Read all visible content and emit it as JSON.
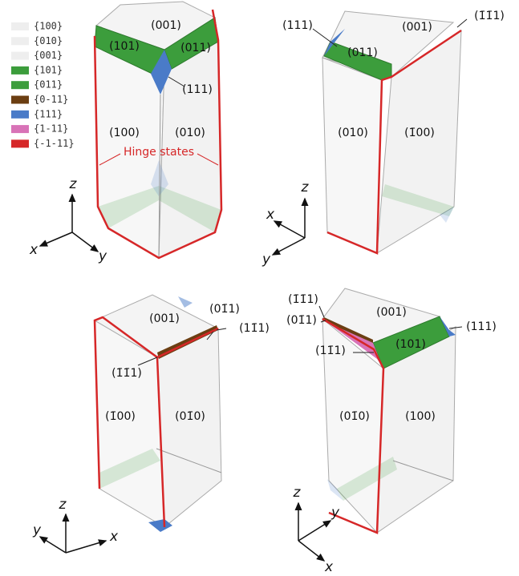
{
  "legend": [
    {
      "label": "{100}",
      "color": "#eeeeee"
    },
    {
      "label": "{010}",
      "color": "#eeeeee"
    },
    {
      "label": "{001}",
      "color": "#eeeeee"
    },
    {
      "label": "{101}",
      "color": "#3c9d3c"
    },
    {
      "label": "{011}",
      "color": "#3c9d3c"
    },
    {
      "label": "{0-11}",
      "color": "#6b3e12"
    },
    {
      "label": "{111}",
      "color": "#4a7bc8"
    },
    {
      "label": "{1-11}",
      "color": "#d873b7"
    },
    {
      "label": "{-1-11}",
      "color": "#d62728"
    }
  ],
  "panels": [
    {
      "labels": [
        "(001)",
        "(101)",
        "(011)",
        "(111)",
        "(100)",
        "(010)"
      ],
      "annotation": "Hinge states",
      "axes": [
        "z",
        "x",
        "y"
      ]
    },
    {
      "labels": [
        "(111)",
        "(001)",
        "(1̄1̄1)",
        "(011)",
        "(010)",
        "(1̄00)"
      ],
      "axes": [
        "z",
        "x",
        "y"
      ]
    },
    {
      "labels": [
        "(001)",
        "(01̄1)",
        "(11̄1)",
        "(1̄1̄1)",
        "(1̄00)",
        "(01̄0)"
      ],
      "axes": [
        "z",
        "y",
        "x"
      ]
    },
    {
      "labels": [
        "(1̄1̄1)",
        "(01̄1)",
        "(001)",
        "(111)",
        "(11̄1)",
        "(101)",
        "(01̄0)",
        "(100)"
      ],
      "axes": [
        "z",
        "y",
        "x"
      ]
    }
  ]
}
